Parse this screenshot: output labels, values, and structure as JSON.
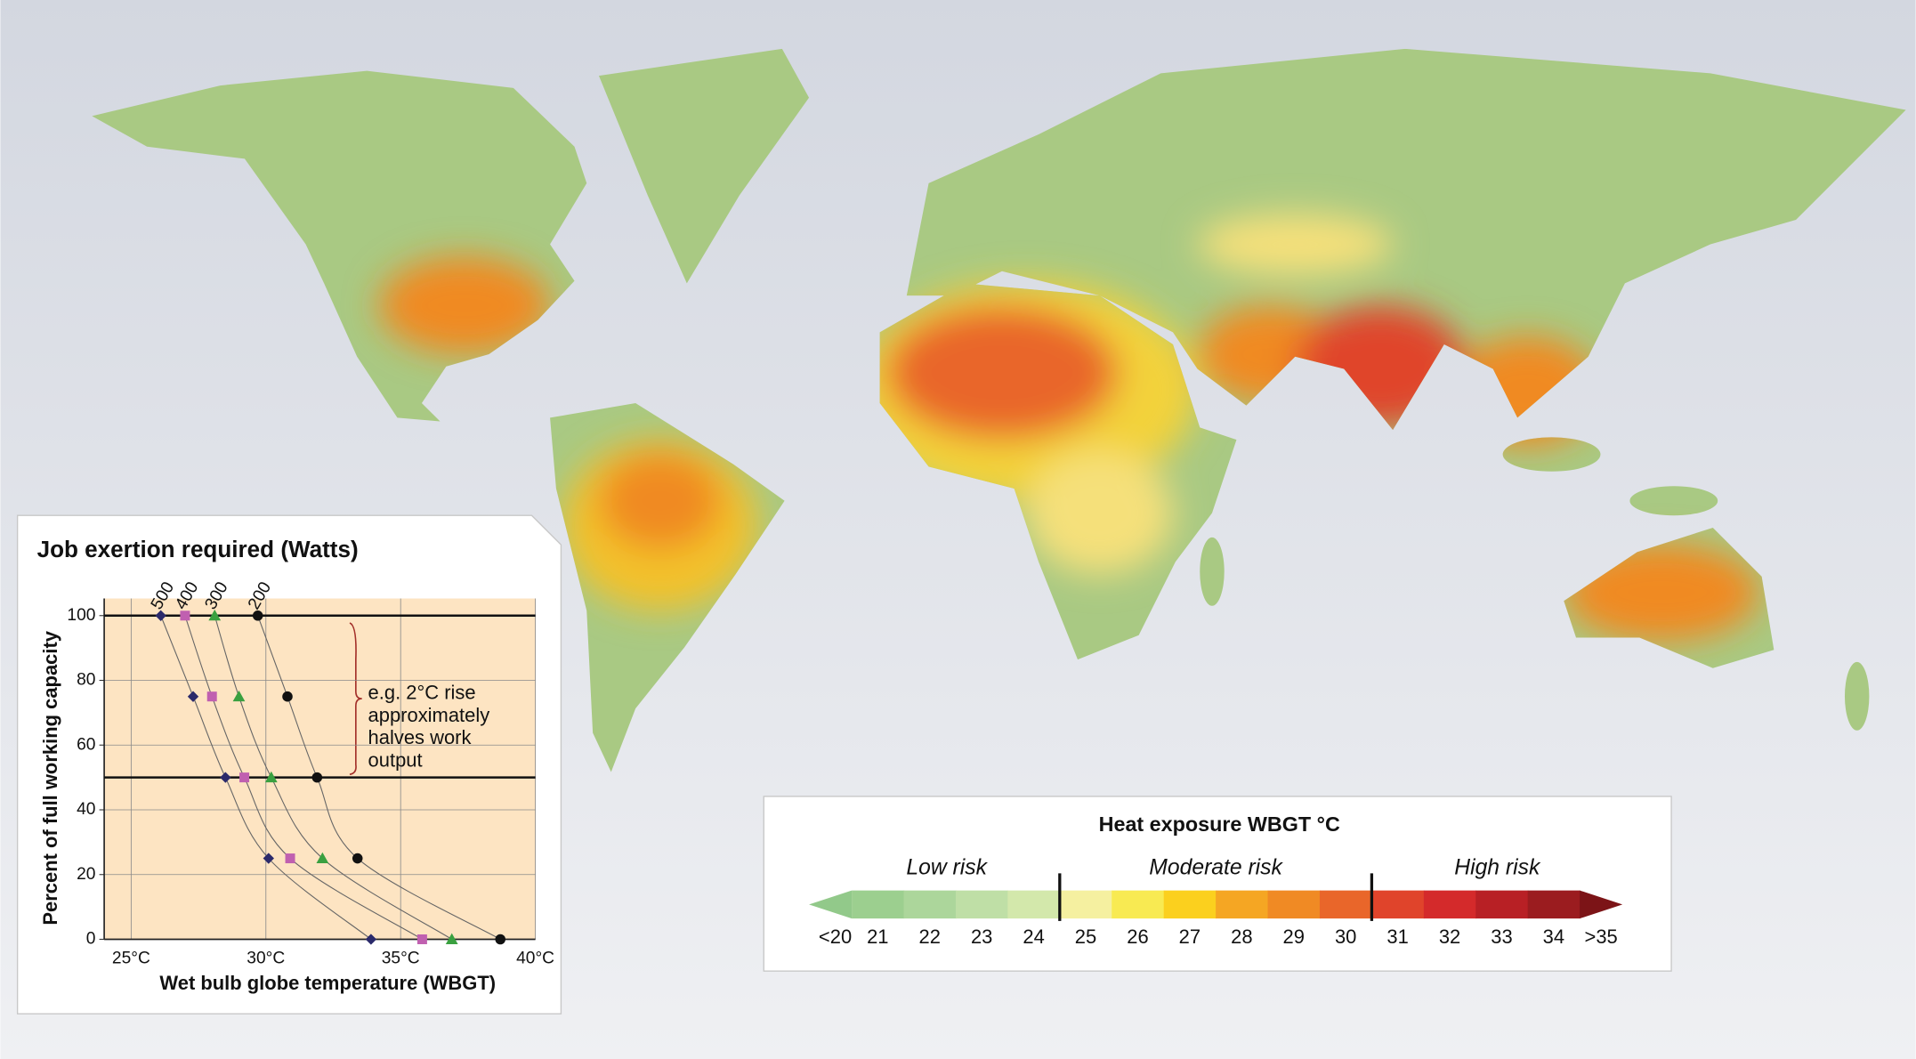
{
  "chart_data": {
    "type": "line",
    "title": "Job exertion required (Watts)",
    "x_label": "Wet bulb globe temperature (WBGT)",
    "y_label": "Percent of full working capacity",
    "xlim": [
      24,
      40
    ],
    "ylim": [
      0,
      100
    ],
    "xticks": [
      {
        "value": 25,
        "label": "25°C"
      },
      {
        "value": 30,
        "label": "30°C"
      },
      {
        "value": 35,
        "label": "35°C"
      },
      {
        "value": 40,
        "label": "40°C"
      }
    ],
    "yticks": [
      0,
      20,
      40,
      60,
      80,
      100
    ],
    "hlines": [
      50,
      100
    ],
    "grid": true,
    "annotation": [
      "e.g. 2°C rise",
      "approximately",
      "halves work",
      "output"
    ],
    "series": [
      {
        "name": "500",
        "color": "#2b2a6b",
        "marker": "diamond",
        "x": [
          26.1,
          27.3,
          28.5,
          30.1,
          33.9
        ],
        "values": [
          100,
          75,
          50,
          25,
          0
        ]
      },
      {
        "name": "400",
        "color": "#c060b0",
        "marker": "square",
        "x": [
          27.0,
          28.0,
          29.2,
          30.9,
          35.8
        ],
        "values": [
          100,
          75,
          50,
          25,
          0
        ]
      },
      {
        "name": "300",
        "color": "#3aa040",
        "marker": "triangle",
        "x": [
          28.1,
          29.0,
          30.2,
          32.1,
          36.9
        ],
        "values": [
          100,
          75,
          50,
          25,
          0
        ]
      },
      {
        "name": "200",
        "color": "#111111",
        "marker": "circle",
        "x": [
          29.7,
          30.8,
          31.9,
          33.4,
          38.7
        ],
        "values": [
          100,
          75,
          50,
          25,
          0
        ]
      }
    ]
  },
  "legend": {
    "title": "Heat exposure WBGT °C",
    "groups": [
      "Low risk",
      "Moderate risk",
      "High risk"
    ],
    "labels": [
      "<20",
      "21",
      "22",
      "23",
      "24",
      "25",
      "26",
      "27",
      "28",
      "29",
      "30",
      "31",
      "32",
      "33",
      "34",
      ">35"
    ],
    "colors": [
      "#92c98a",
      "#9ccf8f",
      "#acd69b",
      "#bfdfa6",
      "#d3e8ab",
      "#f5f0a0",
      "#f8ea52",
      "#fbd01e",
      "#f5a623",
      "#f08a24",
      "#e9662a",
      "#e0442b",
      "#d42a2b",
      "#b82025",
      "#9b1c1f",
      "#7c1417"
    ]
  }
}
